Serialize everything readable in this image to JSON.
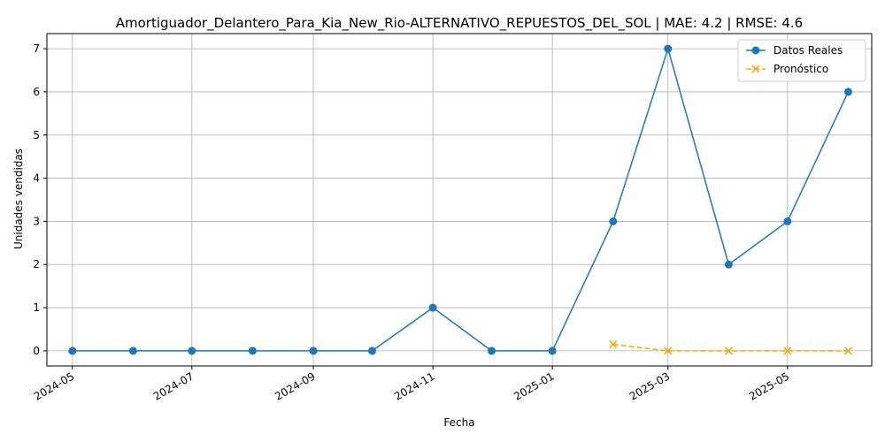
{
  "chart_data": {
    "type": "line",
    "title": "Amortiguador_Delantero_Para_Kia_New_Rio-ALTERNATIVO_REPUESTOS_DEL_SOL | MAE: 4.2 | RMSE: 4.6",
    "xlabel": "Fecha",
    "ylabel": "Unidades vendidas",
    "x_ticks": [
      "2024-05",
      "2024-07",
      "2024-09",
      "2024-11",
      "2025-01",
      "2025-03",
      "2025-05"
    ],
    "y_ticks": [
      0,
      1,
      2,
      3,
      4,
      5,
      6,
      7
    ],
    "ylim": [
      -0.35,
      7.35
    ],
    "xlim": [
      "2024-04-18",
      "2025-06-13"
    ],
    "grid": true,
    "legend_position": "top-right",
    "series": [
      {
        "name": "Datos Reales",
        "color": "#1f77b4",
        "style": "solid",
        "marker": "circle",
        "x": [
          "2024-05-01",
          "2024-06-01",
          "2024-07-01",
          "2024-08-01",
          "2024-09-01",
          "2024-10-01",
          "2024-11-01",
          "2024-12-01",
          "2025-01-01",
          "2025-02-01",
          "2025-03-01",
          "2025-04-01",
          "2025-05-01",
          "2025-06-01"
        ],
        "values": [
          0,
          0,
          0,
          0,
          0,
          0,
          1,
          0,
          0,
          3,
          7,
          2,
          3,
          6
        ]
      },
      {
        "name": "Pronóstico",
        "color": "#ffa500",
        "style": "dashed",
        "marker": "x",
        "x": [
          "2025-02-01",
          "2025-03-01",
          "2025-04-01",
          "2025-05-01",
          "2025-06-01"
        ],
        "values": [
          0.15,
          0.0,
          0.0,
          0.0,
          0.0
        ]
      }
    ]
  }
}
